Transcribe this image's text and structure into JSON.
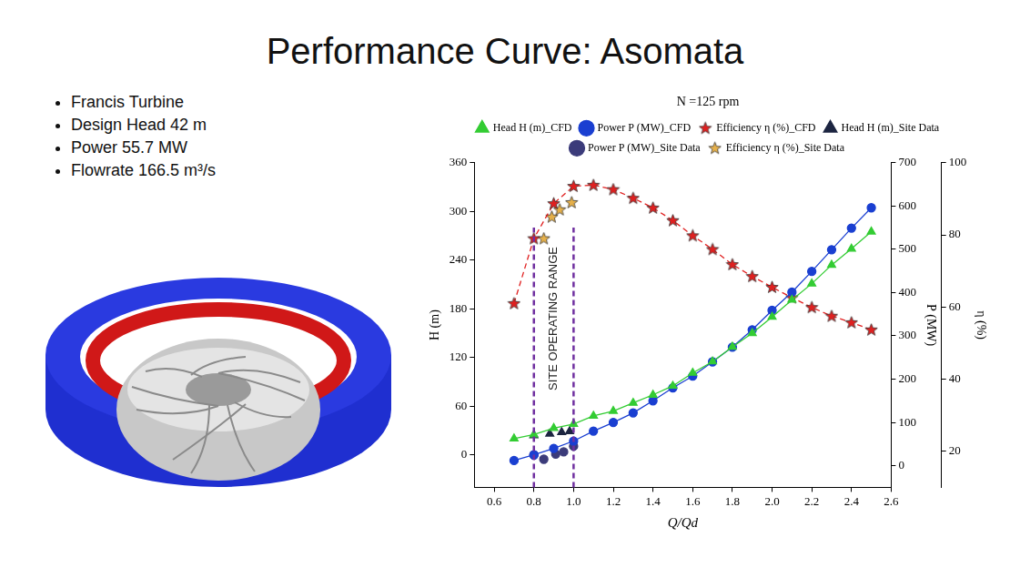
{
  "slide": {
    "title": "Performance Curve: Asomata",
    "bullets": [
      "Francis Turbine",
      "Design Head  42 m",
      "Power 55.7 MW",
      "Flowrate 166.5 m³/s"
    ]
  },
  "chart_data": {
    "type": "line",
    "title": "N =125 rpm",
    "x_label": "Q/Qd",
    "y_label": "H (m)",
    "y2_label": "P (MW)",
    "y3_label": "η (%)",
    "xlim": [
      0.5,
      2.6
    ],
    "xticks": [
      0.6,
      0.8,
      {
        "value": 1,
        "label": "1.0"
      },
      1.2,
      1.4,
      1.6,
      1.8,
      {
        "value": 2,
        "label": "2.0"
      },
      2.2,
      2.4,
      2.6
    ],
    "ylim": [
      -40,
      360
    ],
    "yticks": [
      0,
      60,
      120,
      180,
      240,
      300,
      360
    ],
    "y2lim": [
      -50,
      700
    ],
    "y2ticks": [
      0,
      100,
      200,
      300,
      400,
      500,
      600,
      700
    ],
    "y3lim": [
      10,
      100
    ],
    "y3ticks": [
      20,
      40,
      60,
      80,
      100
    ],
    "grid": false,
    "legend": "top",
    "series": [
      {
        "name": "Head H (m)_CFD",
        "type": "line",
        "axis": "y",
        "color": "#33cc33",
        "marker": "triangle",
        "line_style": "solid",
        "x": [
          0.7,
          0.8,
          0.9,
          1.0,
          1.1,
          1.2,
          1.3,
          1.4,
          1.5,
          1.6,
          1.7,
          1.8,
          1.9,
          2.0,
          2.1,
          2.2,
          2.3,
          2.4,
          2.5
        ],
        "values": [
          20,
          25,
          33,
          38,
          48,
          54,
          64,
          74,
          85,
          101,
          115,
          133,
          150,
          170,
          191,
          211,
          234,
          254,
          275
        ]
      },
      {
        "name": "Power P (MW)_CFD",
        "type": "line",
        "axis": "y2",
        "color": "#1a3fd1",
        "marker": "circle",
        "line_style": "solid",
        "x": [
          0.7,
          0.8,
          0.9,
          1.0,
          1.1,
          1.2,
          1.3,
          1.4,
          1.5,
          1.6,
          1.7,
          1.8,
          1.9,
          2.0,
          2.1,
          2.2,
          2.3,
          2.4,
          2.5
        ],
        "values": [
          12,
          25,
          40,
          57,
          80,
          100,
          122,
          150,
          180,
          207,
          240,
          274,
          314,
          359,
          401,
          449,
          499,
          549,
          596
        ]
      },
      {
        "name": "Efficiency η (%)_CFD",
        "type": "line",
        "axis": "y3",
        "color": "#e02020",
        "marker": "star",
        "line_style": "dashed",
        "x": [
          0.7,
          0.8,
          0.9,
          1.0,
          1.1,
          1.2,
          1.3,
          1.4,
          1.5,
          1.6,
          1.7,
          1.8,
          1.9,
          2.0,
          2.1,
          2.2,
          2.3,
          2.4,
          2.5
        ],
        "values": [
          61,
          79,
          88.7,
          93.5,
          93.8,
          92.6,
          90.2,
          87.5,
          84,
          79.8,
          76,
          71.8,
          68.5,
          65.5,
          62.6,
          59.9,
          57.5,
          55.7,
          53.7
        ]
      },
      {
        "name": "Head H (m)_Site Data",
        "type": "scatter",
        "axis": "y",
        "color": "#1c2541",
        "marker": "triangle",
        "line_style": "none",
        "x": [
          0.8,
          0.88,
          0.94,
          0.98
        ],
        "values": [
          24,
          26,
          28,
          29
        ]
      },
      {
        "name": "Power P (MW)_Site Data",
        "type": "scatter",
        "axis": "y2",
        "color": "#3b3b7a",
        "marker": "circle",
        "line_style": "none",
        "x": [
          0.8,
          0.85,
          0.91,
          0.95,
          1.0
        ],
        "values": [
          25,
          15,
          27,
          32,
          45
        ]
      },
      {
        "name": "Efficiency η (%)_Site Data",
        "type": "scatter",
        "axis": "y3",
        "color": "#e6b04a",
        "marker": "star",
        "line_style": "none",
        "x": [
          0.85,
          0.89,
          0.93,
          0.99
        ],
        "values": [
          79,
          85,
          87,
          89
        ]
      }
    ],
    "annotations": [
      {
        "text": "SITE OPERATING RANGE",
        "x": [
          0.8,
          1.0
        ],
        "color": "#7030a0",
        "line_style": "dashed"
      }
    ]
  }
}
